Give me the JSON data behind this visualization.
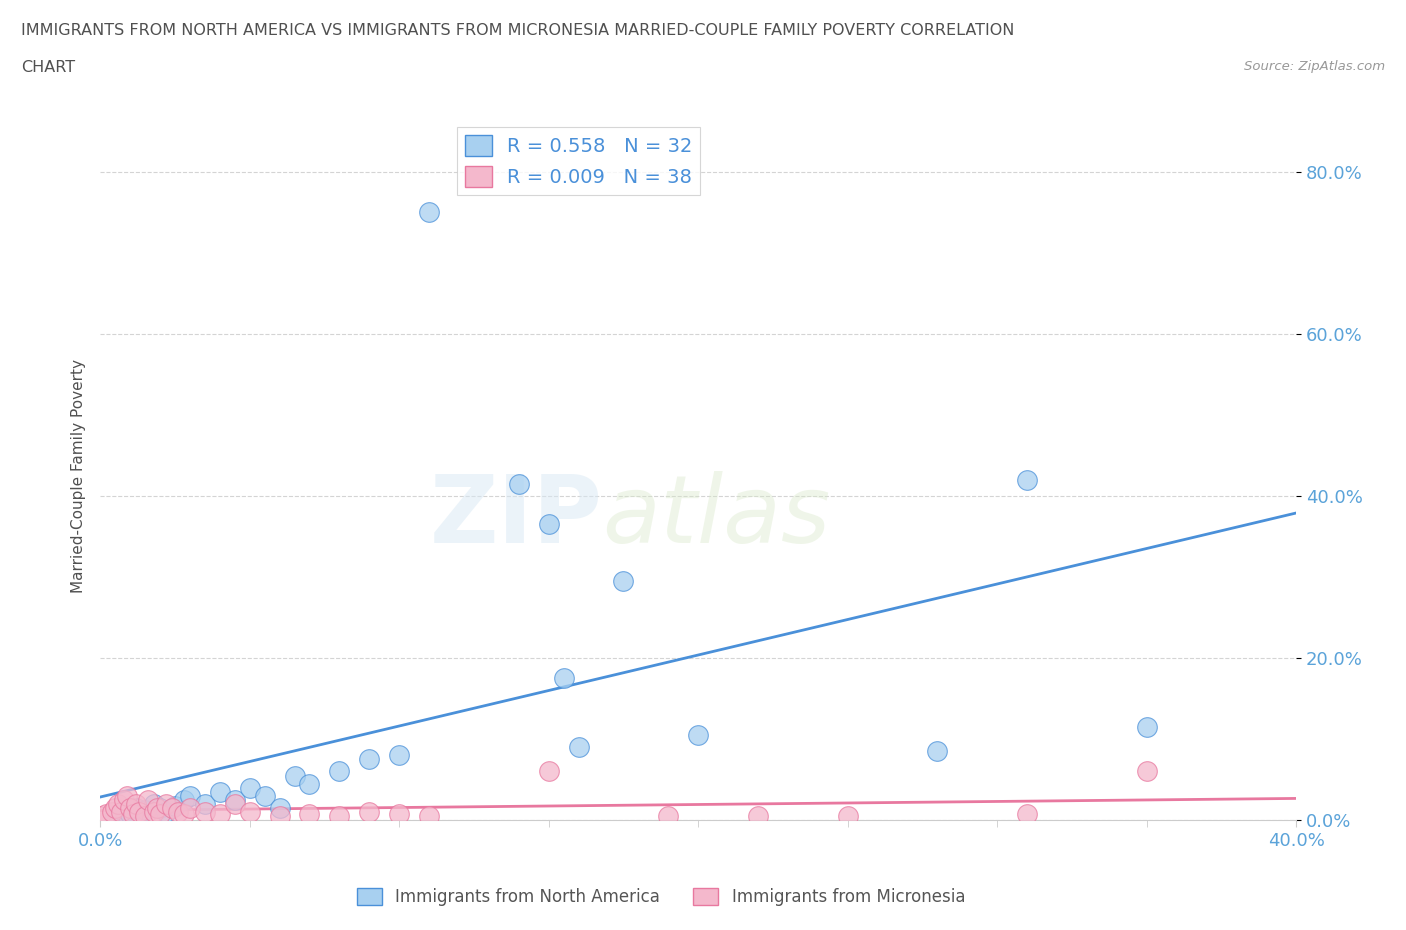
{
  "title_line1": "IMMIGRANTS FROM NORTH AMERICA VS IMMIGRANTS FROM MICRONESIA MARRIED-COUPLE FAMILY POVERTY CORRELATION",
  "title_line2": "CHART",
  "source": "Source: ZipAtlas.com",
  "ylabel": "Married-Couple Family Poverty",
  "xlim": [
    0.0,
    0.4
  ],
  "ylim": [
    0.0,
    0.85
  ],
  "ytick_positions": [
    0.0,
    0.2,
    0.4,
    0.6,
    0.8
  ],
  "ytick_labels": [
    "0.0%",
    "20.0%",
    "40.0%",
    "60.0%",
    "80.0%"
  ],
  "watermark_zip": "ZIP",
  "watermark_atlas": "atlas",
  "blue_color": "#a8d0f0",
  "pink_color": "#f4b8cc",
  "blue_line_color": "#4a90d9",
  "pink_line_color": "#e8789f",
  "R_blue": 0.558,
  "N_blue": 32,
  "R_pink": 0.009,
  "N_pink": 38,
  "blue_scatter_x": [
    0.005,
    0.008,
    0.01,
    0.012,
    0.015,
    0.018,
    0.02,
    0.022,
    0.025,
    0.028,
    0.03,
    0.035,
    0.04,
    0.045,
    0.05,
    0.055,
    0.06,
    0.065,
    0.07,
    0.08,
    0.09,
    0.1,
    0.11,
    0.14,
    0.15,
    0.155,
    0.16,
    0.175,
    0.2,
    0.28,
    0.31,
    0.35
  ],
  "blue_scatter_y": [
    0.005,
    0.01,
    0.008,
    0.015,
    0.012,
    0.02,
    0.015,
    0.01,
    0.018,
    0.025,
    0.03,
    0.02,
    0.035,
    0.025,
    0.04,
    0.03,
    0.015,
    0.055,
    0.045,
    0.06,
    0.075,
    0.08,
    0.75,
    0.415,
    0.365,
    0.175,
    0.09,
    0.295,
    0.105,
    0.085,
    0.42,
    0.115
  ],
  "pink_scatter_x": [
    0.0,
    0.002,
    0.004,
    0.005,
    0.006,
    0.007,
    0.008,
    0.009,
    0.01,
    0.011,
    0.012,
    0.013,
    0.015,
    0.016,
    0.018,
    0.019,
    0.02,
    0.022,
    0.024,
    0.026,
    0.028,
    0.03,
    0.035,
    0.04,
    0.045,
    0.05,
    0.06,
    0.07,
    0.08,
    0.09,
    0.1,
    0.11,
    0.15,
    0.19,
    0.22,
    0.25,
    0.31,
    0.35
  ],
  "pink_scatter_y": [
    0.005,
    0.008,
    0.01,
    0.015,
    0.02,
    0.01,
    0.025,
    0.03,
    0.015,
    0.008,
    0.02,
    0.01,
    0.005,
    0.025,
    0.01,
    0.015,
    0.008,
    0.02,
    0.015,
    0.01,
    0.008,
    0.015,
    0.01,
    0.008,
    0.02,
    0.01,
    0.005,
    0.008,
    0.005,
    0.01,
    0.008,
    0.005,
    0.06,
    0.005,
    0.005,
    0.005,
    0.008,
    0.06
  ],
  "grid_color": "#d0d0d0",
  "bg_color": "#ffffff",
  "title_color": "#505050",
  "axis_label_color": "#505050",
  "tick_label_color": "#5ba3d9"
}
